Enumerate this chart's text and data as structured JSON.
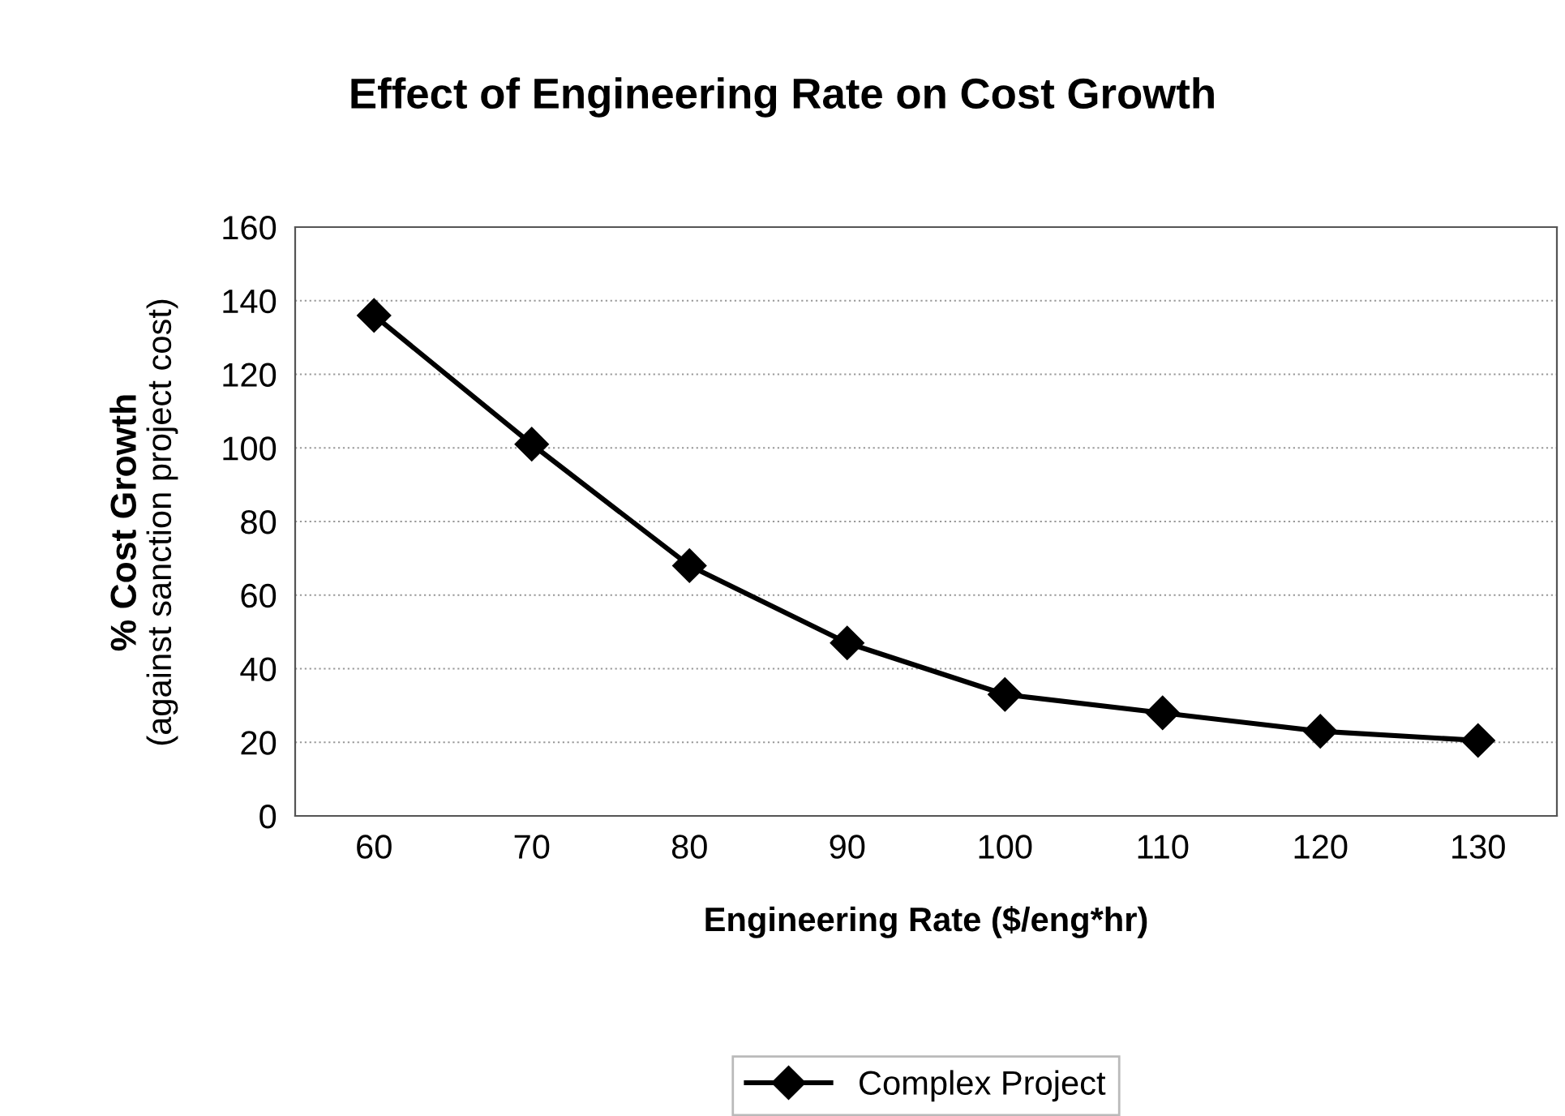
{
  "chart_data": {
    "type": "line",
    "title": "Effect of Engineering Rate on Cost Growth",
    "xlabel": "Engineering Rate ($/eng*hr)",
    "ylabel": "% Cost Growth\n(against sanction project cost)",
    "categories": [
      "60",
      "70",
      "80",
      "90",
      "100",
      "110",
      "120",
      "130"
    ],
    "series": [
      {
        "name": "Complex Project",
        "color": "#000000",
        "values": [
          136,
          101,
          68,
          47,
          33,
          28,
          23,
          20.5
        ]
      }
    ],
    "ylim": [
      0,
      160
    ],
    "yticks": [
      0,
      20,
      40,
      60,
      80,
      100,
      120,
      140,
      160
    ],
    "grid": "y",
    "legend": "bottom",
    "marker": "diamond",
    "line_style": "solid"
  }
}
